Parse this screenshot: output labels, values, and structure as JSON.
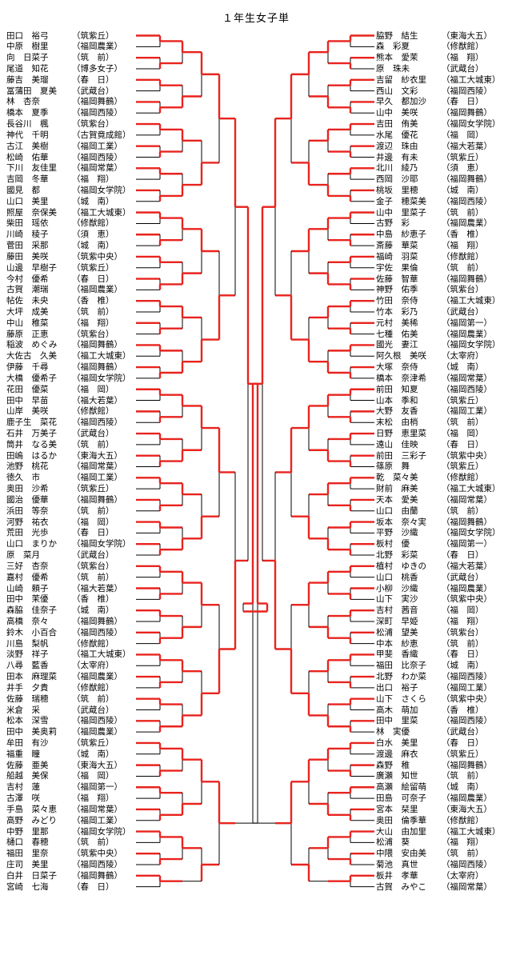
{
  "title": "１年生女子単",
  "left": [
    {
      "name": "田口　裕弓",
      "school": "（筑紫丘）"
    },
    {
      "name": "中原　樹里",
      "school": "（福岡農業）"
    },
    {
      "name": "向　日菜子",
      "school": "（筑　前）"
    },
    {
      "name": "尾道　知花",
      "school": "（博多女子）"
    },
    {
      "name": "藤吉　美瑠",
      "school": "（春　日）"
    },
    {
      "name": "冨蒲田　夏美",
      "school": "（武蔵台）"
    },
    {
      "name": "林　杏奈",
      "school": "（福岡舞鶴）"
    },
    {
      "name": "橋本　夏季",
      "school": "（福岡西陵）"
    },
    {
      "name": "長谷川　楓",
      "school": "（筑紫台）"
    },
    {
      "name": "神代　千明",
      "school": "（古賀竟成館）"
    },
    {
      "name": "古江　美樹",
      "school": "（福岡工業）"
    },
    {
      "name": "松崎　佑華",
      "school": "（福岡西陵）"
    },
    {
      "name": "下川　友佳里",
      "school": "（福岡常葉）"
    },
    {
      "name": "吉岡　冬華",
      "school": "（福　翔）"
    },
    {
      "name": "國見　都",
      "school": "（福岡女学院）"
    },
    {
      "name": "山口　美里",
      "school": "（城　南）"
    },
    {
      "name": "照屋　奈保美",
      "school": "（福工大城東）"
    },
    {
      "name": "柴田　瑶依",
      "school": "（修猷館）"
    },
    {
      "name": "川崎　稜子",
      "school": "（須　恵）"
    },
    {
      "name": "菅田　采那",
      "school": "（城　南）"
    },
    {
      "name": "藤田　美咲",
      "school": "（筑紫中央）"
    },
    {
      "name": "山邊　早樹子",
      "school": "（筑紫丘）"
    },
    {
      "name": "今村　優希",
      "school": "（春　日）"
    },
    {
      "name": "古賀　潮瑞",
      "school": "（福岡農業）"
    },
    {
      "name": "帖佐　未央",
      "school": "（香　椎）"
    },
    {
      "name": "大坪　成美",
      "school": "（筑　前）"
    },
    {
      "name": "中山　稚菜",
      "school": "（福　翔）"
    },
    {
      "name": "藤原　正恵",
      "school": "（筑紫台）"
    },
    {
      "name": "稲波　めぐみ",
      "school": "（福岡舞鶴）"
    },
    {
      "name": "大佐古　久美",
      "school": "（福工大城東）"
    },
    {
      "name": "伊藤　千尋",
      "school": "（福岡舞鶴）"
    },
    {
      "name": "大橋　優希子",
      "school": "（福岡女学院）"
    },
    {
      "name": "花田　優菜",
      "school": "（福　岡）"
    },
    {
      "name": "田中　早苗",
      "school": "（福大若葉）"
    },
    {
      "name": "山岸　美咲",
      "school": "（修猷館）"
    },
    {
      "name": "鹿子生　菜花",
      "school": "（福岡西陵）"
    },
    {
      "name": "石井　万美子",
      "school": "（武蔵台）"
    },
    {
      "name": "筒井　なる美",
      "school": "（筑　前）"
    },
    {
      "name": "田嶋　はるか",
      "school": "（東海大五）"
    },
    {
      "name": "池野　桃花",
      "school": "（福岡常葉）"
    },
    {
      "name": "徳久　市",
      "school": "（福岡工業）"
    },
    {
      "name": "奥田　沙希",
      "school": "（筑紫丘）"
    },
    {
      "name": "國治　優華",
      "school": "（福岡舞鶴）"
    },
    {
      "name": "浜田　等奈",
      "school": "（筑　前）"
    },
    {
      "name": "河野　祐衣",
      "school": "（福　岡）"
    },
    {
      "name": "荒田　光歩",
      "school": "（春　日）"
    },
    {
      "name": "山口　まりか",
      "school": "（福岡女学院）"
    },
    {
      "name": "原　菜月",
      "school": "（武蔵台）"
    },
    {
      "name": "三好　杏奈",
      "school": "（筑紫台）"
    },
    {
      "name": "嘉村　優希",
      "school": "（筑　前）"
    },
    {
      "name": "山崎　頼子",
      "school": "（福大若葉）"
    },
    {
      "name": "田中　茉優",
      "school": "（香　椎）"
    },
    {
      "name": "森脇　佳奈子",
      "school": "（城　南）"
    },
    {
      "name": "高橋　奈々",
      "school": "（福岡舞鶴）"
    },
    {
      "name": "鈴木　小百合",
      "school": "（福岡西陵）"
    },
    {
      "name": "川島　梨帆",
      "school": "（修猷館）"
    },
    {
      "name": "淡野　祥子",
      "school": "（福工大城東）"
    },
    {
      "name": "八尋　藍香",
      "school": "（太宰府）"
    },
    {
      "name": "田本　麻理菜",
      "school": "（福岡農業）"
    },
    {
      "name": "井手　夕貴",
      "school": "（修猷館）"
    },
    {
      "name": "佐藤　瑞穂",
      "school": "（筑　前）"
    },
    {
      "name": "米倉　采",
      "school": "（武蔵台）"
    },
    {
      "name": "松本　深雪",
      "school": "（福岡西陵）"
    },
    {
      "name": "田中　美奥莉",
      "school": "（福岡農業）"
    },
    {
      "name": "牟田　有沙",
      "school": "（筑紫丘）"
    },
    {
      "name": "福重　瞳",
      "school": "（城　南）"
    },
    {
      "name": "佐藤　亜美",
      "school": "（東海大五）"
    },
    {
      "name": "船越　美保",
      "school": "（福　岡）"
    },
    {
      "name": "吉村　蓮",
      "school": "（福岡第一）"
    },
    {
      "name": "古澤　咲",
      "school": "（福　翔）"
    },
    {
      "name": "手島　菜々恵",
      "school": "（福岡常葉）"
    },
    {
      "name": "高野　みどり",
      "school": "（福岡工業）"
    },
    {
      "name": "中野　里那",
      "school": "（福岡女学院）"
    },
    {
      "name": "樋口　春穂",
      "school": "（筑　前）"
    },
    {
      "name": "福田　里奈",
      "school": "（筑紫中央）"
    },
    {
      "name": "庄司　美里",
      "school": "（福岡西陵）"
    },
    {
      "name": "白井　日菜子",
      "school": "（福岡舞鶴）"
    },
    {
      "name": "宮崎　七海",
      "school": "（春　日）"
    }
  ],
  "right": [
    {
      "name": "脇野　結生",
      "school": "（東海大五）"
    },
    {
      "name": "森　彩夏",
      "school": "（修猷館）"
    },
    {
      "name": "熊本　愛茉",
      "school": "（福　翔）"
    },
    {
      "name": "原　珠未",
      "school": "（武蔵台）"
    },
    {
      "name": "吉留　紗衣里",
      "school": "（福工大城東）"
    },
    {
      "name": "西山　文彩",
      "school": "（福岡西陵）"
    },
    {
      "name": "早久　都加沙",
      "school": "（春　日）"
    },
    {
      "name": "山中　美咲",
      "school": "（福岡舞鶴）"
    },
    {
      "name": "吉田　侑美",
      "school": "（福岡女学院）"
    },
    {
      "name": "水尾　優花",
      "school": "（福　岡）"
    },
    {
      "name": "渡辺　珠由",
      "school": "（福大若葉）"
    },
    {
      "name": "井邊　有未",
      "school": "（筑紫丘）"
    },
    {
      "name": "北川　綾乃",
      "school": "（須　恵）"
    },
    {
      "name": "西岡　沙耶",
      "school": "（福岡舞鶴）"
    },
    {
      "name": "桃坂　里穂",
      "school": "（城　南）"
    },
    {
      "name": "金子　穂菜美",
      "school": "（福岡西陵）"
    },
    {
      "name": "山中　里菜子",
      "school": "（筑　前）"
    },
    {
      "name": "古野　彩",
      "school": "（福岡農業）"
    },
    {
      "name": "中島　紗恵子",
      "school": "（香　椎）"
    },
    {
      "name": "斎藤　華菜",
      "school": "（福　翔）"
    },
    {
      "name": "福崎　羽菜",
      "school": "（修猷館）"
    },
    {
      "name": "宇佐　果倫",
      "school": "（筑　前）"
    },
    {
      "name": "佐藤　智華",
      "school": "（福岡舞鶴）"
    },
    {
      "name": "神野　佑季",
      "school": "（筑紫台）"
    },
    {
      "name": "竹田　奈侍",
      "school": "（福工大城東）"
    },
    {
      "name": "竹本　彩乃",
      "school": "（武蔵台）"
    },
    {
      "name": "元村　美稀",
      "school": "（福岡第一）"
    },
    {
      "name": "七種　佑美",
      "school": "（福岡農業）"
    },
    {
      "name": "國光　妻江",
      "school": "（福岡女学院）"
    },
    {
      "name": "阿久根　美咲",
      "school": "（太宰府）"
    },
    {
      "name": "大塚　奈侍",
      "school": "（城　南）"
    },
    {
      "name": "橋本　奈津希",
      "school": "（福岡常葉）"
    },
    {
      "name": "前田　知夏",
      "school": "（福岡西陵）"
    },
    {
      "name": "山本　季和",
      "school": "（筑紫丘）"
    },
    {
      "name": "大野　友香",
      "school": "（福岡工業）"
    },
    {
      "name": "末松　由梢",
      "school": "（筑　前）"
    },
    {
      "name": "日野　恵里菜",
      "school": "（福　岡）"
    },
    {
      "name": "遠山　佳映",
      "school": "（春　日）"
    },
    {
      "name": "前田　三彩子",
      "school": "（筑紫中央）"
    },
    {
      "name": "篠原　舞",
      "school": "（筑紫丘）"
    },
    {
      "name": "乾　菜々美",
      "school": "（修猷館）"
    },
    {
      "name": "財前　麻美",
      "school": "（福工大城東）"
    },
    {
      "name": "天本　愛美",
      "school": "（福岡常葉）"
    },
    {
      "name": "山口　由蘭",
      "school": "（筑　前）"
    },
    {
      "name": "坂本　奈々実",
      "school": "（福岡舞鶴）"
    },
    {
      "name": "平野　沙織",
      "school": "（福岡女学院）"
    },
    {
      "name": "板村　優",
      "school": "（福岡第一）"
    },
    {
      "name": "北野　彩菜",
      "school": "（春　日）"
    },
    {
      "name": "植村　ゆきの",
      "school": "（福大若葉）"
    },
    {
      "name": "山口　桃香",
      "school": "（武蔵台）"
    },
    {
      "name": "小柳　沙織",
      "school": "（福岡農業）"
    },
    {
      "name": "山下　実沙",
      "school": "（筑紫中央）"
    },
    {
      "name": "吉村　茜音",
      "school": "（福　岡）"
    },
    {
      "name": "深町　早姫",
      "school": "（福　翔）"
    },
    {
      "name": "松浦　望美",
      "school": "（筑紫台）"
    },
    {
      "name": "中本　紗恵",
      "school": "（筑　前）"
    },
    {
      "name": "甲斐　香織",
      "school": "（春　日）"
    },
    {
      "name": "福田　比奈子",
      "school": "（城　南）"
    },
    {
      "name": "北野　わか菜",
      "school": "（福岡西陵）"
    },
    {
      "name": "出口　裕子",
      "school": "（福岡工業）"
    },
    {
      "name": "山下　さくら",
      "school": "（筑紫中央）"
    },
    {
      "name": "高木　萌加",
      "school": "（香　椎）"
    },
    {
      "name": "田中　里菜",
      "school": "（福岡西陵）"
    },
    {
      "name": "林　実優",
      "school": "（武蔵台）"
    },
    {
      "name": "白水　美里",
      "school": "（春　日）"
    },
    {
      "name": "渡邊　麻衣",
      "school": "（筑紫丘）"
    },
    {
      "name": "森野　稚",
      "school": "（福岡舞鶴）"
    },
    {
      "name": "廣瀬　知世",
      "school": "（筑　前）"
    },
    {
      "name": "高瀬　絵留萌",
      "school": "（城　南）"
    },
    {
      "name": "田島　可奈子",
      "school": "（福岡農業）"
    },
    {
      "name": "宮本　栞里",
      "school": "（東海大五）"
    },
    {
      "name": "奥田　倫季華",
      "school": "（修猷館）"
    },
    {
      "name": "大山　由加里",
      "school": "（福工大城東）"
    },
    {
      "name": "松浦　葵",
      "school": "（福　翔）"
    },
    {
      "name": "中隈　安由美",
      "school": "（筑　前）"
    },
    {
      "name": "菊池　真世",
      "school": "（福岡西陵）"
    },
    {
      "name": "板井　孝華",
      "school": "（太宰府）"
    },
    {
      "name": "古賀　みやこ",
      "school": "（福岡常葉）"
    }
  ],
  "colors": {
    "advance": "#e8231e",
    "line": "#000000",
    "text": "#000000"
  }
}
